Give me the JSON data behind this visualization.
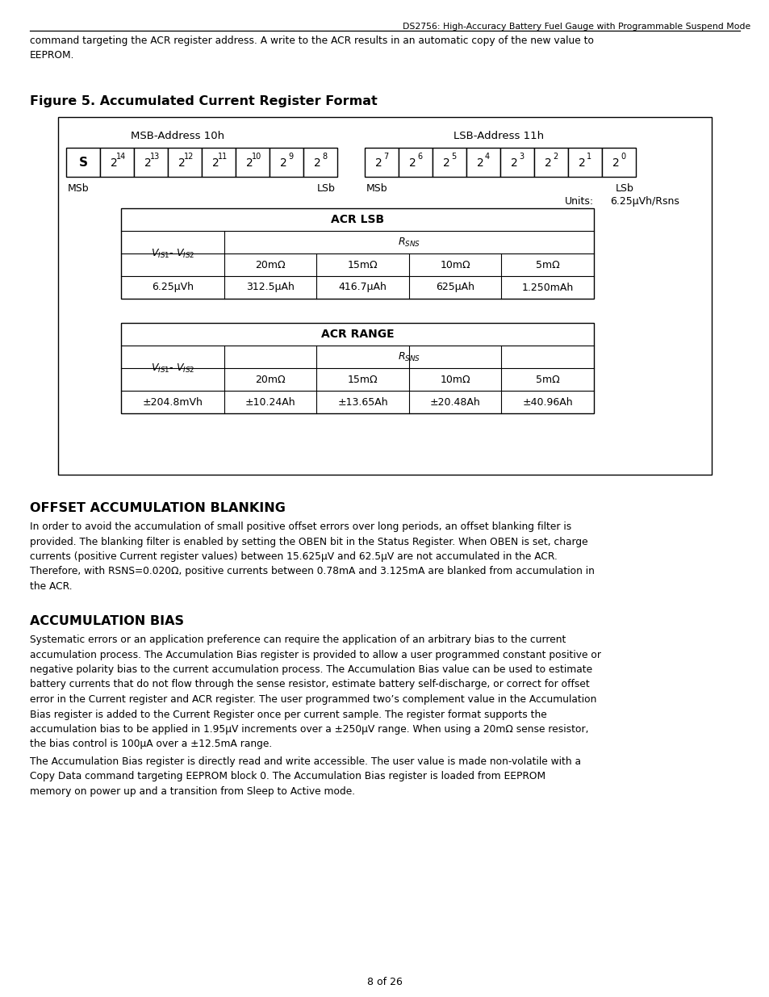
{
  "header_title": "DS2756: High-Accuracy Battery Fuel Gauge with Programmable Suspend Mode",
  "header_text": "command targeting the ACR register address. A write to the ACR results in an automatic copy of the new value to\nEEPROM.",
  "figure_title": "Figure 5. Accumulated Current Register Format",
  "msb_label": "MSB-Address 10h",
  "lsb_label": "LSB-Address 11h",
  "units_label": "Units:",
  "units_value": "6.25μVh/Rsns",
  "acr_lsb_title": "ACR LSB",
  "acr_lsb_cols": [
    "20mΩ",
    "15mΩ",
    "10mΩ",
    "5mΩ"
  ],
  "acr_lsb_row": [
    "6.25μVh",
    "312.5μAh",
    "416.7μAh",
    "625μAh",
    "1.250mAh"
  ],
  "acr_range_title": "ACR RANGE",
  "acr_range_cols": [
    "20mΩ",
    "15mΩ",
    "10mΩ",
    "5mΩ"
  ],
  "acr_range_row": [
    "±204.8mVh",
    "±10.24Ah",
    "±13.65Ah",
    "±20.48Ah",
    "±40.96Ah"
  ],
  "offset_title": "OFFSET ACCUMULATION BLANKING",
  "offset_body": "In order to avoid the accumulation of small positive offset errors over long periods, an offset blanking filter is\nprovided. The blanking filter is enabled by setting the OBEN bit in the Status Register. When OBEN is set, charge\ncurrents (positive Current register values) between 15.625μV and 62.5μV are not accumulated in the ACR.\nTherefore, with RSNS=0.020Ω, positive currents between 0.78mA and 3.125mA are blanked from accumulation in\nthe ACR.",
  "accum_title": "ACCUMULATION BIAS",
  "accum_body1": "Systematic errors or an application preference can require the application of an arbitrary bias to the current\naccumulation process. The Accumulation Bias register is provided to allow a user programmed constant positive or\nnegative polarity bias to the current accumulation process. The Accumulation Bias value can be used to estimate\nbattery currents that do not flow through the sense resistor, estimate battery self-discharge, or correct for offset\nerror in the Current register and ACR register. The user programmed two’s complement value in the Accumulation\nBias register is added to the Current Register once per current sample. The register format supports the\naccumulation bias to be applied in 1.95μV increments over a ±250μV range. When using a 20mΩ sense resistor,\nthe bias control is 100μA over a ±12.5mA range.",
  "accum_body2": "The Accumulation Bias register is directly read and write accessible. The user value is made non-volatile with a\nCopy Data command targeting EEPROM block 0. The Accumulation Bias register is loaded from EEPROM\nmemory on power up and a transition from Sleep to Active mode.",
  "footer": "8 of 26",
  "bg_color": "#ffffff",
  "text_color": "#000000"
}
